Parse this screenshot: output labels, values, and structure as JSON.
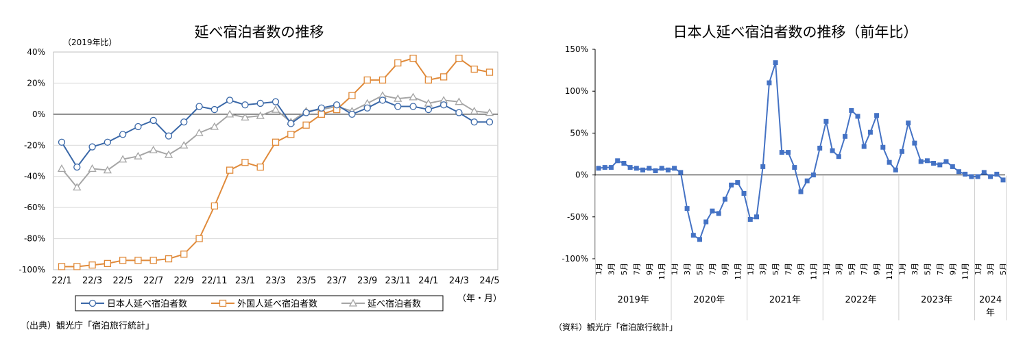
{
  "chart_data": [
    {
      "type": "line",
      "title": "延べ宿泊者数の推移",
      "ylabel": "（2019年比）",
      "xlabel": "（年・月）",
      "source": "（出典）観光庁「宿泊旅行統計」",
      "ylim": [
        -100,
        40
      ],
      "yticks": [
        40,
        20,
        0,
        -20,
        -40,
        -60,
        -80,
        -100
      ],
      "ytick_labels": [
        "40%",
        "20%",
        "0%",
        "-20%",
        "-40%",
        "-60%",
        "-80%",
        "-100%"
      ],
      "grid": true,
      "legend_position": "bottom",
      "x": [
        "22/1",
        "22/2",
        "22/3",
        "22/4",
        "22/5",
        "22/6",
        "22/7",
        "22/8",
        "22/9",
        "22/10",
        "22/11",
        "22/12",
        "23/1",
        "23/2",
        "23/3",
        "23/4",
        "23/5",
        "23/6",
        "23/7",
        "23/8",
        "23/9",
        "23/10",
        "23/11",
        "23/12",
        "24/1",
        "24/2",
        "24/3",
        "24/4",
        "24/5"
      ],
      "xtick_labels": [
        "22/1",
        "22/3",
        "22/5",
        "22/7",
        "22/9",
        "22/11",
        "23/1",
        "23/3",
        "23/5",
        "23/7",
        "23/9",
        "23/11",
        "24/1",
        "24/3",
        "24/5"
      ],
      "series": [
        {
          "name": "日本人延べ宿泊者数",
          "color": "#3a68a8",
          "marker": "circle",
          "values": [
            -18,
            -34,
            -21,
            -18,
            -13,
            -8,
            -4,
            -14,
            -5,
            5,
            3,
            9,
            6,
            7,
            8,
            -6,
            1,
            4,
            6,
            0,
            4,
            9,
            5,
            5,
            3,
            6,
            1,
            -5,
            -5
          ]
        },
        {
          "name": "外国人延べ宿泊者数",
          "color": "#e08a3a",
          "marker": "square",
          "values": [
            -98,
            -98,
            -97,
            -96,
            -94,
            -94,
            -94,
            -93,
            -90,
            -80,
            -59,
            -36,
            -31,
            -34,
            -18,
            -13,
            -7,
            0,
            3,
            12,
            22,
            22,
            33,
            36,
            22,
            24,
            36,
            29,
            27
          ]
        },
        {
          "name": "延べ宿泊者数",
          "color": "#a5a5a5",
          "marker": "triangle",
          "values": [
            -35,
            -47,
            -35,
            -36,
            -29,
            -27,
            -23,
            -26,
            -20,
            -12,
            -8,
            0,
            -2,
            -1,
            3,
            -5,
            2,
            3,
            5,
            2,
            7,
            12,
            10,
            11,
            7,
            9,
            8,
            2,
            1
          ]
        }
      ]
    },
    {
      "type": "line",
      "title": "日本人延べ宿泊者数の推移（前年比）",
      "source": "（資料）観光庁「宿泊旅行統計」",
      "ylim": [
        -100,
        150
      ],
      "yticks": [
        150,
        100,
        50,
        0,
        -50,
        -100
      ],
      "ytick_labels": [
        "150%",
        "100%",
        "50%",
        "0%",
        "-50%",
        "-100%"
      ],
      "grid": false,
      "color": "#4472c4",
      "marker": "square",
      "month_labels": [
        "1月",
        "3月",
        "5月",
        "7月",
        "9月",
        "11月"
      ],
      "year_groups": [
        {
          "label": "2019年",
          "months": 12
        },
        {
          "label": "2020年",
          "months": 12
        },
        {
          "label": "2021年",
          "months": 12
        },
        {
          "label": "2022年",
          "months": 12
        },
        {
          "label": "2023年",
          "months": 12
        },
        {
          "label": "2024",
          "label2": "年",
          "months": 5
        }
      ],
      "series": [
        {
          "name": "",
          "values": [
            8,
            9,
            9,
            17,
            14,
            9,
            8,
            6,
            8,
            5,
            8,
            6,
            8,
            3,
            -40,
            -72,
            -77,
            -56,
            -43,
            -46,
            -29,
            -12,
            -9,
            -22,
            -53,
            -50,
            10,
            110,
            134,
            27,
            27,
            9,
            -20,
            -7,
            0,
            32,
            64,
            29,
            22,
            46,
            77,
            70,
            34,
            51,
            71,
            33,
            15,
            6,
            28,
            62,
            38,
            16,
            17,
            14,
            12,
            16,
            10,
            4,
            1,
            -2,
            -2,
            3,
            -2,
            1,
            -6
          ]
        }
      ]
    }
  ]
}
